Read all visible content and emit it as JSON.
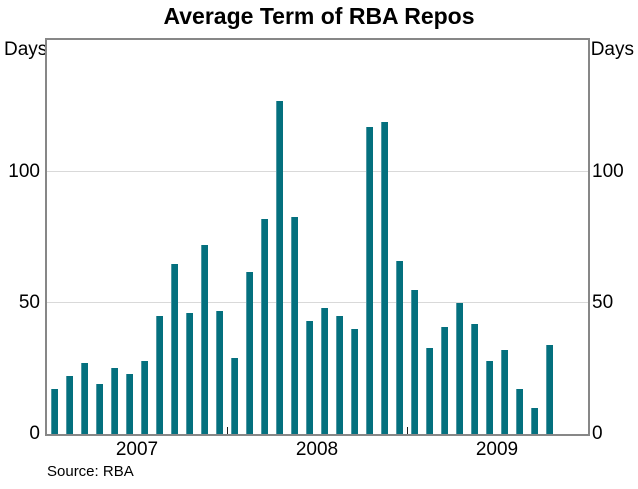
{
  "title": "Average Term of RBA Repos",
  "axis": {
    "left_unit": "Days",
    "right_unit": "Days"
  },
  "source": "Source: RBA",
  "colors": {
    "bar": "#04707e",
    "bar_highlight": "#4e97a3",
    "frame": "#878787",
    "gridline": "#d9d9d9"
  },
  "chart_data": {
    "type": "bar",
    "title": "Average Term of RBA Repos",
    "xlabel": "",
    "ylabel": "Days",
    "ylim": [
      0,
      150
    ],
    "yticks": [
      0,
      50,
      100
    ],
    "gridlines": [
      50,
      100
    ],
    "grid": "horizontal",
    "legend_position": "none",
    "x": [
      "Jan 2007",
      "Feb 2007",
      "Mar 2007",
      "Apr 2007",
      "May 2007",
      "Jun 2007",
      "Jul 2007",
      "Aug 2007",
      "Sep 2007",
      "Oct 2007",
      "Nov 2007",
      "Dec 2007",
      "Jan 2008",
      "Feb 2008",
      "Mar 2008",
      "Apr 2008",
      "May 2008",
      "Jun 2008",
      "Jul 2008",
      "Aug 2008",
      "Sep 2008",
      "Oct 2008",
      "Nov 2008",
      "Dec 2008",
      "Jan 2009",
      "Feb 2009",
      "Mar 2009",
      "Apr 2009",
      "May 2009",
      "Jun 2009",
      "Jul 2009",
      "Aug 2009",
      "Sep 2009",
      "Oct 2009"
    ],
    "values": [
      17,
      22,
      27,
      19,
      25,
      23,
      28,
      45,
      65,
      46,
      72,
      47,
      29,
      62,
      82,
      127,
      83,
      43,
      48,
      45,
      40,
      117,
      119,
      66,
      55,
      33,
      41,
      50,
      42,
      28,
      32,
      17,
      10,
      34
    ],
    "year_labels": [
      "2007",
      "2008",
      "2009"
    ],
    "unit": "Days"
  }
}
